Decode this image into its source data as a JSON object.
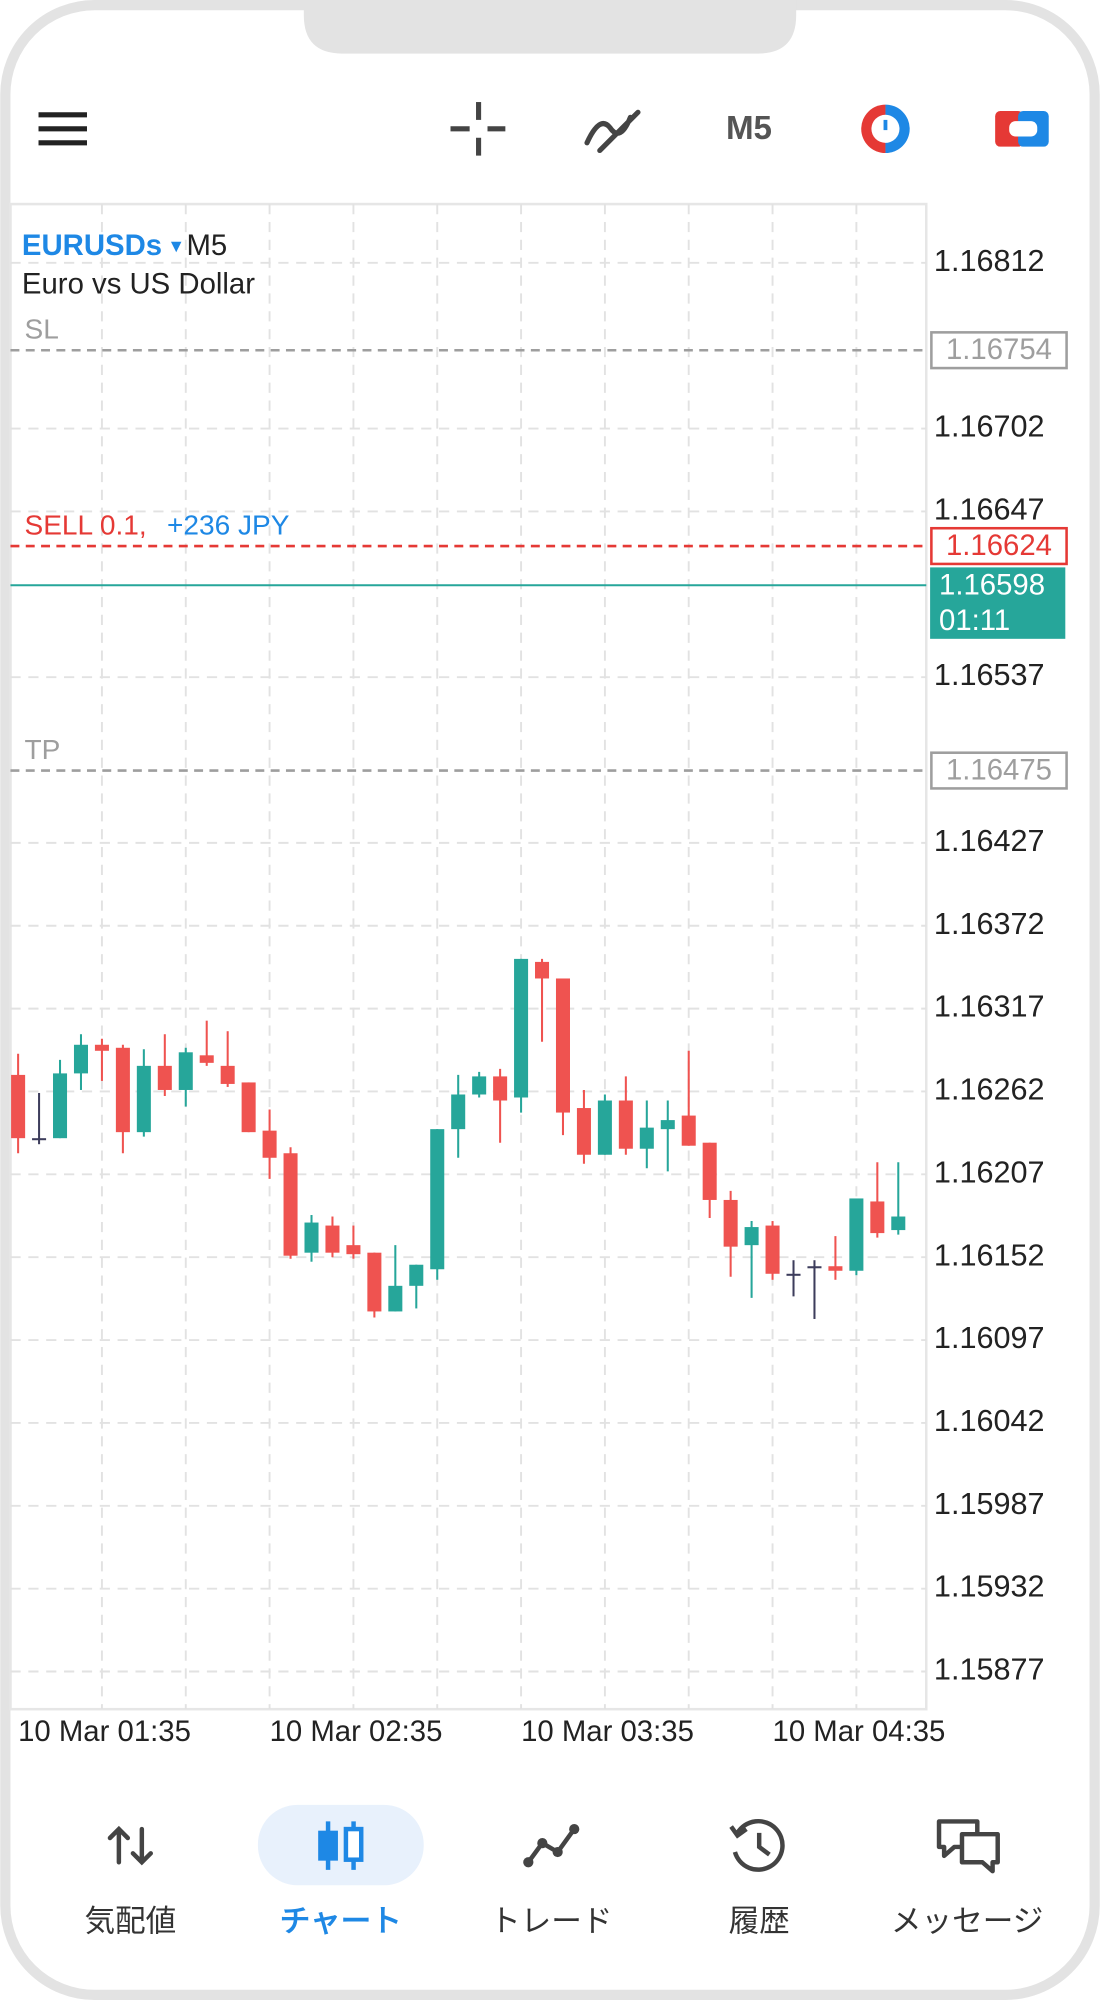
{
  "top_bar": {
    "timeframe": "M5"
  },
  "chart_data": {
    "type": "candlestick",
    "symbol": "EURUSDs",
    "timeframe": "M5",
    "description": "Euro vs US Dollar",
    "categories": [
      "10 Mar 01:35",
      null,
      null,
      null,
      null,
      null,
      null,
      null,
      null,
      null,
      null,
      null,
      "10 Mar 02:35",
      null,
      null,
      null,
      null,
      null,
      null,
      null,
      null,
      null,
      null,
      null,
      "10 Mar 03:35",
      null,
      null,
      null,
      null,
      null,
      null,
      null,
      null,
      null,
      null,
      null,
      "10 Mar 04:35",
      null,
      null,
      null,
      null,
      null,
      null
    ],
    "open": [
      1.16273,
      1.16231,
      1.16231,
      1.16274,
      1.16293,
      1.16291,
      1.16235,
      1.16279,
      1.16263,
      1.16286,
      1.16279,
      1.16268,
      1.16236,
      1.16221,
      1.16155,
      1.16173,
      1.1616,
      1.16155,
      1.16116,
      1.16133,
      1.16144,
      1.16237,
      1.1626,
      1.16272,
      1.16258,
      1.16348,
      1.16337,
      1.16251,
      1.1622,
      1.16256,
      1.16224,
      1.16237,
      1.16246,
      1.16228,
      1.1619,
      1.1616,
      1.16173,
      1.16141,
      1.16146,
      1.16146,
      1.16143,
      1.16189,
      1.1617
    ],
    "high": [
      1.16287,
      1.16261,
      1.16283,
      1.163,
      1.16297,
      1.16293,
      1.1629,
      1.163,
      1.16291,
      1.16309,
      1.16302,
      1.16268,
      1.1625,
      1.16225,
      1.1618,
      1.16179,
      1.16173,
      1.16155,
      1.1616,
      1.16147,
      1.16237,
      1.16273,
      1.16275,
      1.16277,
      1.1635,
      1.1635,
      1.16337,
      1.16263,
      1.1626,
      1.16272,
      1.16256,
      1.16256,
      1.16289,
      1.16228,
      1.16196,
      1.16176,
      1.16176,
      1.1615,
      1.1615,
      1.16166,
      1.16191,
      1.16215,
      1.16215
    ],
    "low": [
      1.16221,
      1.16227,
      1.16231,
      1.16263,
      1.16269,
      1.16221,
      1.16232,
      1.16259,
      1.16252,
      1.16279,
      1.16265,
      1.16235,
      1.16204,
      1.16151,
      1.16149,
      1.16152,
      1.16151,
      1.16112,
      1.16116,
      1.16118,
      1.16137,
      1.16218,
      1.16258,
      1.16228,
      1.16248,
      1.16295,
      1.16233,
      1.16214,
      1.1622,
      1.1622,
      1.16211,
      1.16209,
      1.16226,
      1.16178,
      1.16139,
      1.16125,
      1.16137,
      1.16126,
      1.16111,
      1.16137,
      1.1614,
      1.16165,
      1.16167
    ],
    "close": [
      1.16231,
      1.16231,
      1.16274,
      1.16293,
      1.16289,
      1.16235,
      1.16279,
      1.16263,
      1.16288,
      1.16281,
      1.16267,
      1.16235,
      1.16218,
      1.16153,
      1.16175,
      1.16155,
      1.16154,
      1.16116,
      1.16133,
      1.16147,
      1.16237,
      1.1626,
      1.16272,
      1.16256,
      1.1635,
      1.16337,
      1.16248,
      1.1622,
      1.16256,
      1.16224,
      1.16238,
      1.16243,
      1.16226,
      1.1619,
      1.16159,
      1.16172,
      1.16141,
      1.16141,
      1.16146,
      1.16143,
      1.16191,
      1.16168,
      1.16179
    ],
    "up_color": "#26a69a",
    "down_color": "#ef5350",
    "flat_color": "#3d3d5c",
    "ylim": [
      1.15852,
      1.16851
    ],
    "yticks": [
      1.16812,
      1.16702,
      1.16647,
      1.16537,
      1.16427,
      1.16372,
      1.16317,
      1.16262,
      1.16207,
      1.16152,
      1.16097,
      1.16042,
      1.15987,
      1.15932,
      1.15877
    ],
    "grid": true,
    "levels": [
      {
        "label": "SL",
        "value": 1.16754,
        "color": "#9e9e9e"
      },
      {
        "label": "SELL 0.1,",
        "profit": "+236 JPY",
        "value": 1.16624,
        "color": "#e53935"
      },
      {
        "label": "TP",
        "value": 1.16475,
        "color": "#9e9e9e"
      }
    ],
    "bid": {
      "value": 1.16598,
      "time": "01:11",
      "color": "#26a69a"
    }
  },
  "nav": {
    "tabs": [
      "気配値",
      "チャート",
      "トレード",
      "履歴",
      "メッセージ"
    ],
    "active": 1
  }
}
